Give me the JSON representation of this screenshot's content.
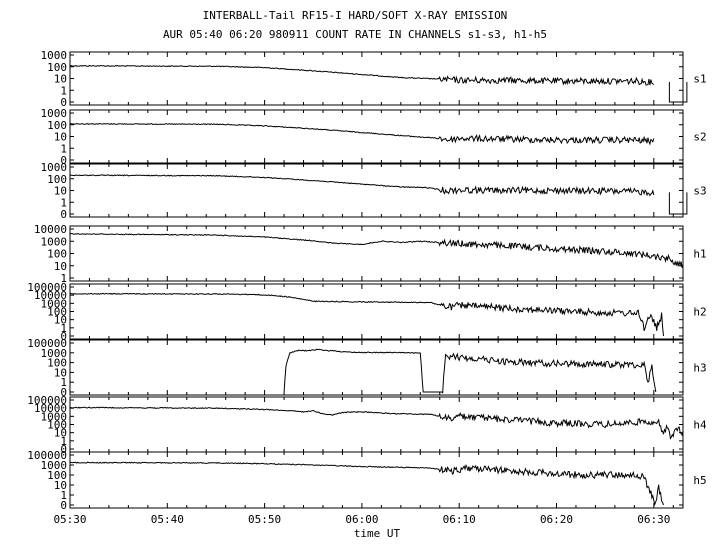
{
  "chart_data": {
    "type": "line",
    "title": "INTERBALL-Tail RF15-I HARD/SOFT X-RAY EMISSION",
    "subtitle": "AUR 05:40 06:20 980911  COUNT RATE IN CHANNELS s1-s3, h1-h5",
    "xlabel": "time UT",
    "x_ticks": [
      "05:30",
      "05:40",
      "05:50",
      "06:00",
      "06:10",
      "06:20",
      "06:30"
    ],
    "x_range_min": [
      0,
      63
    ],
    "y_scale": "log",
    "grid": false,
    "panels": [
      {
        "name": "s1",
        "yticks": [
          "1000",
          "100",
          "10",
          "1",
          "0"
        ],
        "y_range": [
          0,
          1000
        ],
        "dropout_min": [
          [
            61.6,
            63.4
          ]
        ],
        "points": [
          [
            0,
            120
          ],
          [
            15,
            110
          ],
          [
            20,
            85
          ],
          [
            25,
            45
          ],
          [
            30,
            22
          ],
          [
            34,
            12
          ],
          [
            36.5,
            10
          ],
          [
            38,
            9
          ],
          [
            38.6,
            8
          ],
          [
            39.2,
            8
          ],
          [
            40,
            7
          ],
          [
            45,
            7
          ],
          [
            50,
            6
          ],
          [
            55,
            6
          ],
          [
            58,
            6
          ],
          [
            59.5,
            5
          ],
          [
            60,
            5
          ]
        ]
      },
      {
        "name": "s2",
        "yticks": [
          "1000",
          "100",
          "10",
          "1",
          "0"
        ],
        "y_range": [
          0,
          1000
        ],
        "dropout_min": [],
        "points": [
          [
            0,
            120
          ],
          [
            15,
            110
          ],
          [
            20,
            80
          ],
          [
            25,
            45
          ],
          [
            30,
            22
          ],
          [
            34,
            12
          ],
          [
            36,
            9
          ],
          [
            37,
            8
          ],
          [
            38.6,
            6
          ],
          [
            39,
            5
          ],
          [
            40,
            7
          ],
          [
            45,
            6
          ],
          [
            50,
            5
          ],
          [
            55,
            5
          ],
          [
            58,
            5
          ],
          [
            60,
            4
          ]
        ]
      },
      {
        "name": "s3",
        "yticks": [
          "1000",
          "100",
          "10",
          "1",
          "0"
        ],
        "y_range": [
          0,
          1000
        ],
        "dropout_min": [
          [
            61.6,
            63.4
          ]
        ],
        "points": [
          [
            0,
            200
          ],
          [
            15,
            180
          ],
          [
            20,
            130
          ],
          [
            25,
            70
          ],
          [
            30,
            35
          ],
          [
            34,
            20
          ],
          [
            36.5,
            18
          ],
          [
            37.5,
            14
          ],
          [
            38.6,
            10
          ],
          [
            39.2,
            10
          ],
          [
            40,
            11
          ],
          [
            45,
            10
          ],
          [
            50,
            10
          ],
          [
            55,
            9
          ],
          [
            58,
            8
          ],
          [
            59.5,
            7
          ],
          [
            60,
            7
          ]
        ]
      },
      {
        "name": "h1",
        "yticks": [
          "10000",
          "1000",
          "100",
          "10",
          "1"
        ],
        "y_range": [
          1,
          10000
        ],
        "dropout_min": [],
        "points": [
          [
            0,
            4000
          ],
          [
            15,
            3200
          ],
          [
            20,
            2200
          ],
          [
            25,
            1100
          ],
          [
            27,
            700
          ],
          [
            30,
            550
          ],
          [
            32,
            1000
          ],
          [
            34,
            800
          ],
          [
            36,
            1000
          ],
          [
            38.6,
            750
          ],
          [
            39.2,
            700
          ],
          [
            45,
            420
          ],
          [
            50,
            250
          ],
          [
            55,
            150
          ],
          [
            58,
            100
          ],
          [
            60,
            60
          ],
          [
            61.5,
            40
          ],
          [
            63,
            10
          ]
        ]
      },
      {
        "name": "h2",
        "yticks": [
          "100000",
          "10000",
          "1000",
          "100",
          "10",
          "1",
          "0"
        ],
        "y_range": [
          0,
          100000
        ],
        "dropout_min": [],
        "points": [
          [
            0,
            15000
          ],
          [
            15,
            14000
          ],
          [
            19,
            12000
          ],
          [
            21,
            9000
          ],
          [
            22.5,
            6000
          ],
          [
            24,
            3000
          ],
          [
            25,
            1800
          ],
          [
            30,
            1500
          ],
          [
            34,
            1400
          ],
          [
            35,
            1300
          ],
          [
            37,
            1300
          ],
          [
            38.6,
            400
          ],
          [
            39.2,
            350
          ],
          [
            40,
            600
          ],
          [
            45,
            250
          ],
          [
            50,
            120
          ],
          [
            55,
            70
          ],
          [
            58.5,
            60
          ],
          [
            59,
            1
          ],
          [
            59.6,
            40
          ],
          [
            60.3,
            1
          ],
          [
            60.8,
            30
          ],
          [
            61,
            0
          ]
        ]
      },
      {
        "name": "h3",
        "yticks": [
          "100000",
          "1000",
          "100",
          "10",
          "1",
          "0"
        ],
        "y_range": [
          0,
          100000
        ],
        "dropout_min": [],
        "points": [
          [
            22,
            0
          ],
          [
            22.2,
            50
          ],
          [
            22.6,
            1000
          ],
          [
            23.5,
            3000
          ],
          [
            24.5,
            2500
          ],
          [
            25.5,
            5000
          ],
          [
            26.5,
            2500
          ],
          [
            27,
            3000
          ],
          [
            28,
            1500
          ],
          [
            30,
            1200
          ],
          [
            34,
            1100
          ],
          [
            36,
            900
          ],
          [
            36.3,
            0
          ],
          [
            38.3,
            0
          ],
          [
            38.6,
            400
          ],
          [
            39.2,
            400
          ],
          [
            41,
            300
          ],
          [
            45,
            120
          ],
          [
            50,
            80
          ],
          [
            55,
            65
          ],
          [
            59,
            60
          ],
          [
            59.4,
            1
          ],
          [
            59.8,
            40
          ],
          [
            60.2,
            0
          ]
        ]
      },
      {
        "name": "h4",
        "yticks": [
          "100000",
          "10000",
          "1000",
          "100",
          "10",
          "1",
          "0"
        ],
        "y_range": [
          0,
          100000
        ],
        "dropout_min": [],
        "points": [
          [
            0,
            12000
          ],
          [
            15,
            10000
          ],
          [
            20,
            7000
          ],
          [
            22.5,
            5000
          ],
          [
            24,
            3500
          ],
          [
            25,
            5000
          ],
          [
            26,
            2000
          ],
          [
            27,
            1500
          ],
          [
            28,
            3000
          ],
          [
            30,
            3500
          ],
          [
            33,
            2200
          ],
          [
            36,
            1800
          ],
          [
            37,
            1800
          ],
          [
            38.6,
            700
          ],
          [
            39.2,
            500
          ],
          [
            40,
            1000
          ],
          [
            45,
            400
          ],
          [
            50,
            150
          ],
          [
            55,
            100
          ],
          [
            58,
            180
          ],
          [
            59.5,
            250
          ],
          [
            60.5,
            150
          ],
          [
            61,
            5
          ],
          [
            61.4,
            60
          ],
          [
            61.8,
            2
          ],
          [
            62.4,
            30
          ],
          [
            63,
            10
          ]
        ]
      },
      {
        "name": "h5",
        "yticks": [
          "100000",
          "1000",
          "100",
          "10",
          "1",
          "0"
        ],
        "y_range": [
          0,
          100000
        ],
        "dropout_min": [],
        "points": [
          [
            0,
            3000
          ],
          [
            15,
            2600
          ],
          [
            20,
            1800
          ],
          [
            25,
            1000
          ],
          [
            30,
            700
          ],
          [
            35,
            550
          ],
          [
            37,
            500
          ],
          [
            38.6,
            300
          ],
          [
            39.2,
            250
          ],
          [
            41,
            500
          ],
          [
            45,
            280
          ],
          [
            50,
            130
          ],
          [
            53,
            100
          ],
          [
            56,
            110
          ],
          [
            58,
            90
          ],
          [
            59,
            60
          ],
          [
            59.5,
            3
          ],
          [
            59.8,
            1
          ],
          [
            60.1,
            0
          ],
          [
            60.5,
            5
          ],
          [
            61,
            0
          ]
        ]
      }
    ]
  }
}
